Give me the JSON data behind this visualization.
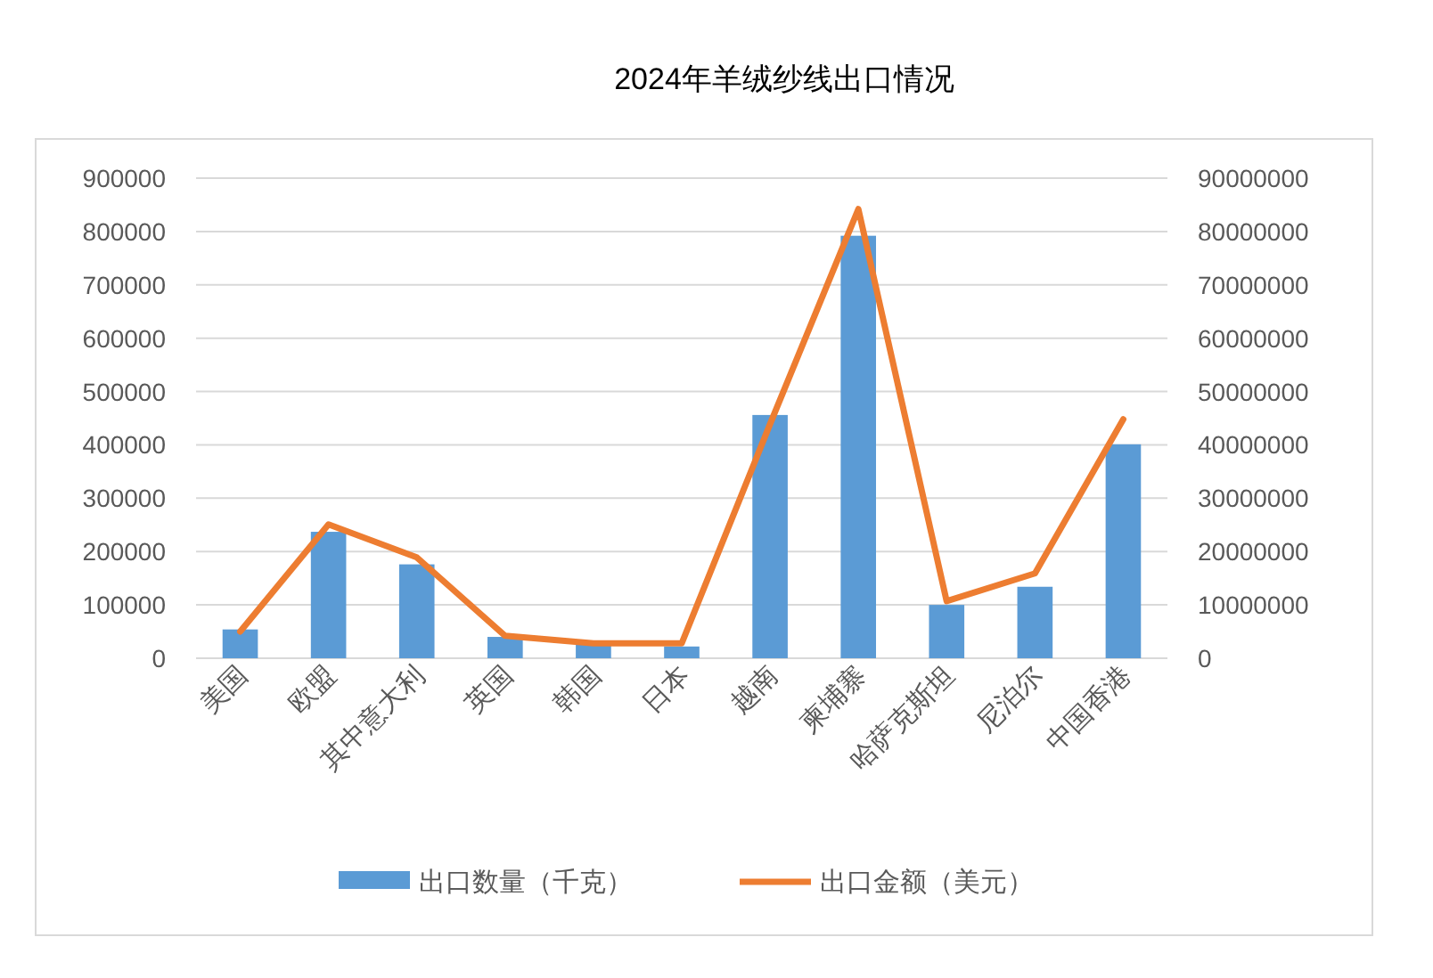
{
  "chart_data": {
    "type": "bar",
    "title": "2024年羊绒纱线出口情况",
    "categories": [
      "美国",
      "欧盟",
      "其中意大利",
      "英国",
      "韩国",
      "日本",
      "越南",
      "柬埔寨",
      "哈萨克斯坦",
      "尼泊尔",
      "中国香港"
    ],
    "series": [
      {
        "name": "出口数量（千克）",
        "color": "#5b9bd5",
        "values": [
          54000,
          237000,
          176000,
          40000,
          26000,
          22000,
          456000,
          792000,
          100000,
          134000,
          401000
        ]
      },
      {
        "name": "出口金额（美元）",
        "type": "line",
        "axis": "y2",
        "color": "#ed7d31",
        "values": [
          5000000,
          25100000,
          18900000,
          4200000,
          2800000,
          2800000,
          43900000,
          84200000,
          10700000,
          15900000,
          44800000
        ]
      }
    ],
    "ylim": [
      0,
      900000
    ],
    "yticks": [
      0,
      100000,
      200000,
      300000,
      400000,
      500000,
      600000,
      700000,
      800000,
      900000
    ],
    "y2lim": [
      0,
      90000000
    ],
    "y2ticks": [
      0,
      10000000,
      20000000,
      30000000,
      40000000,
      50000000,
      60000000,
      70000000,
      80000000,
      90000000
    ],
    "grid": "y",
    "legend": "bottom",
    "marker": "none"
  }
}
